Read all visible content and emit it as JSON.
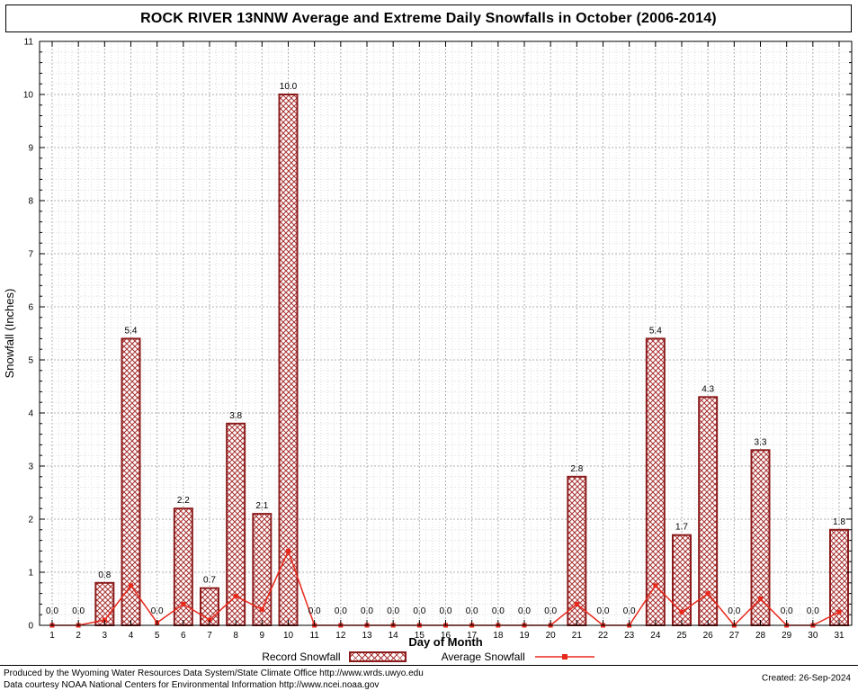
{
  "title": "ROCK RIVER 13NNW Average and Extreme Daily Snowfalls in October (2006-2014)",
  "chart_data": {
    "type": "bar",
    "title": "ROCK RIVER 13NNW Average and Extreme Daily Snowfalls in October (2006-2014)",
    "xlabel": "Day of Month",
    "ylabel": "Snowfall (Inches)",
    "ylim": [
      0,
      11
    ],
    "yticks": [
      0,
      1,
      2,
      3,
      4,
      5,
      6,
      7,
      8,
      9,
      10,
      11
    ],
    "grid": true,
    "legend_position": "bottom",
    "categories": [
      1,
      2,
      3,
      4,
      5,
      6,
      7,
      8,
      9,
      10,
      11,
      12,
      13,
      14,
      15,
      16,
      17,
      18,
      19,
      20,
      21,
      22,
      23,
      24,
      25,
      26,
      27,
      28,
      29,
      30,
      31
    ],
    "series": [
      {
        "name": "Record Snowfall",
        "kind": "bar",
        "values": [
          0.0,
          0.0,
          0.8,
          5.4,
          0.0,
          2.2,
          0.7,
          3.8,
          2.1,
          10.0,
          0.0,
          0.0,
          0.0,
          0.0,
          0.0,
          0.0,
          0.0,
          0.0,
          0.0,
          0.0,
          2.8,
          0.0,
          0.0,
          5.4,
          1.7,
          4.3,
          0.0,
          3.3,
          0.0,
          0.0,
          1.8
        ]
      },
      {
        "name": "Average Snowfall",
        "kind": "line",
        "values": [
          0.0,
          0.0,
          0.1,
          0.75,
          0.05,
          0.4,
          0.1,
          0.55,
          0.3,
          1.4,
          0.0,
          0.0,
          0.0,
          0.0,
          0.0,
          0.0,
          0.0,
          0.0,
          0.0,
          0.0,
          0.4,
          0.0,
          0.0,
          0.75,
          0.25,
          0.6,
          0.0,
          0.5,
          0.0,
          0.0,
          0.25
        ]
      }
    ],
    "colors": {
      "bar_edge": "#8b1c1c",
      "bar_hatch": "#a83232",
      "line": "#e8291c",
      "grid_major": "#b0b0b0",
      "grid_minor": "#dfdfdf",
      "text": "#000000"
    }
  },
  "footer": {
    "line1": "Produced by the Wyoming Water Resources Data System/State Climate Office http://www.wrds.uwyo.edu",
    "line2": "Data courtesy NOAA National Centers for Environmental Information http://www.ncei.noaa.gov",
    "created": "Created: 26-Sep-2024"
  }
}
